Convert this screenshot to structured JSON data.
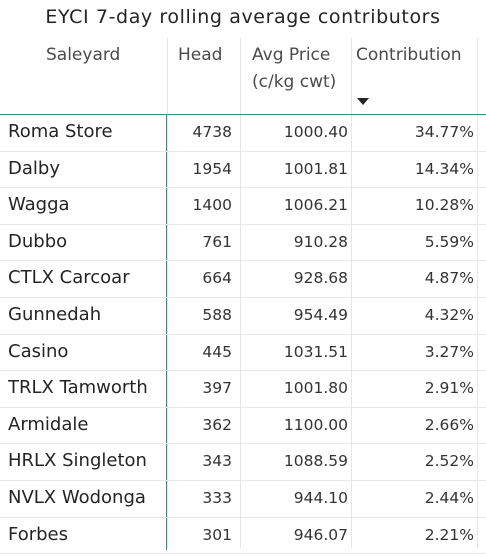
{
  "title": "EYCI 7-day rolling average contributors",
  "columns": {
    "saleyard": "Saleyard",
    "head": "Head",
    "avg_price_line1": "Avg Price",
    "avg_price_line2": "(c/kg cwt)",
    "contribution": "Contribution"
  },
  "sort": {
    "column": "Contribution",
    "direction": "descending",
    "icon": "sort-down-icon"
  },
  "rows": [
    {
      "saleyard": "Roma Store",
      "head": "4738",
      "avg_price": "1000.40",
      "contribution": "34.77%"
    },
    {
      "saleyard": "Dalby",
      "head": "1954",
      "avg_price": "1001.81",
      "contribution": "14.34%"
    },
    {
      "saleyard": "Wagga",
      "head": "1400",
      "avg_price": "1006.21",
      "contribution": "10.28%"
    },
    {
      "saleyard": "Dubbo",
      "head": "761",
      "avg_price": "910.28",
      "contribution": "5.59%"
    },
    {
      "saleyard": "CTLX Carcoar",
      "head": "664",
      "avg_price": "928.68",
      "contribution": "4.87%"
    },
    {
      "saleyard": "Gunnedah",
      "head": "588",
      "avg_price": "954.49",
      "contribution": "4.32%"
    },
    {
      "saleyard": "Casino",
      "head": "445",
      "avg_price": "1031.51",
      "contribution": "3.27%"
    },
    {
      "saleyard": "TRLX Tamworth",
      "head": "397",
      "avg_price": "1001.80",
      "contribution": "2.91%"
    },
    {
      "saleyard": "Armidale",
      "head": "362",
      "avg_price": "1100.00",
      "contribution": "2.66%"
    },
    {
      "saleyard": "HRLX Singleton",
      "head": "343",
      "avg_price": "1088.59",
      "contribution": "2.52%"
    },
    {
      "saleyard": "NVLX Wodonga",
      "head": "333",
      "avg_price": "944.10",
      "contribution": "2.44%"
    },
    {
      "saleyard": "Forbes",
      "head": "301",
      "avg_price": "946.07",
      "contribution": "2.21%"
    }
  ]
}
